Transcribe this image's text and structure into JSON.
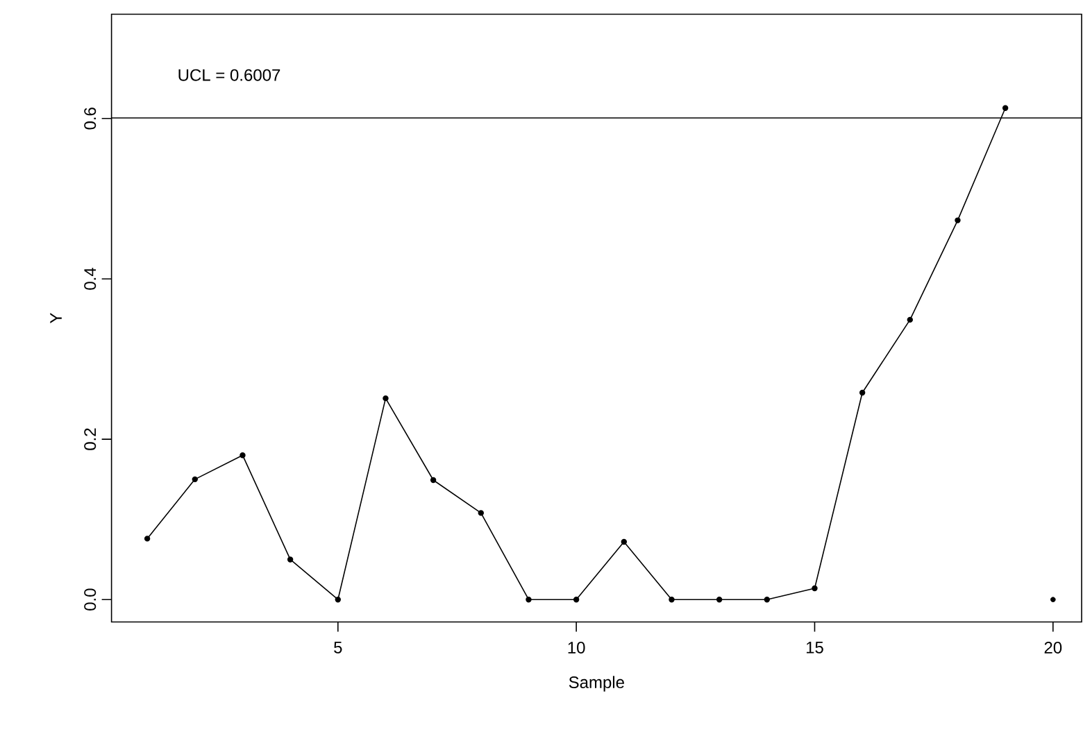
{
  "chart_data": {
    "type": "line",
    "xlabel": "Sample",
    "ylabel": "Y",
    "x": [
      1,
      2,
      3,
      4,
      5,
      6,
      7,
      8,
      9,
      10,
      11,
      12,
      13,
      14,
      15,
      16,
      17,
      18,
      19
    ],
    "series": [
      {
        "color": "#000000",
        "values": [
          0.076,
          0.15,
          0.18,
          0.05,
          0.0,
          0.251,
          0.149,
          0.108,
          0.0,
          0.0,
          0.072,
          0.0,
          0.0,
          0.0,
          0.014,
          0.258,
          0.349,
          0.473,
          0.613
        ]
      },
      {
        "type": "scatter",
        "color": "#000000",
        "x": [
          20
        ],
        "values": [
          0.0
        ]
      }
    ],
    "xlim": [
      0.25,
      20.6
    ],
    "ylim": [
      -0.028,
      0.73
    ],
    "xticks": [
      5,
      10,
      15,
      20
    ],
    "yticks": [
      {
        "value": 0,
        "label": "0.0"
      },
      0.2,
      0.4,
      0.6
    ],
    "ref_lines": [
      {
        "axis": "y",
        "value": 0.6007,
        "label": "UCL = 0.6007",
        "color": "#000000"
      }
    ],
    "marker": "circle",
    "line_style": "solid"
  }
}
